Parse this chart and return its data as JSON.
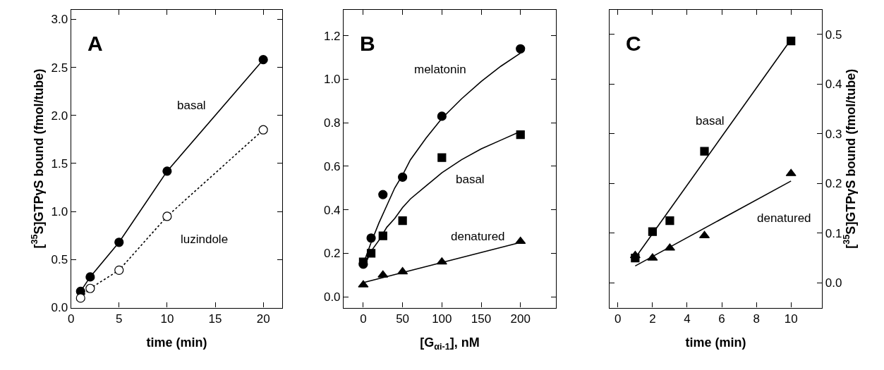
{
  "chart_data": [
    {
      "type": "line",
      "xlabel": "time (min)",
      "ylabel": "[$^{35}$S]GTPγS bound (fmol/tube)",
      "xlim": [
        0,
        22
      ],
      "ylim": [
        0,
        3.1
      ],
      "xticks": [
        0,
        5,
        10,
        15,
        20
      ],
      "yticks": [
        {
          "value": 0,
          "label": "0.0"
        },
        {
          "value": 0.5,
          "label": "0.5"
        },
        {
          "value": 1,
          "label": "1.0"
        },
        {
          "value": 1.5,
          "label": "1.5"
        },
        {
          "value": 2,
          "label": "2.0"
        },
        {
          "value": 2.5,
          "label": "2.5"
        },
        {
          "value": 3,
          "label": "3.0"
        }
      ],
      "grid": false,
      "series": [
        {
          "color": "#000000",
          "marker": "circle",
          "line_style": "solid",
          "x": [
            1,
            2,
            5,
            10,
            20
          ],
          "values": [
            0.17,
            0.32,
            0.68,
            1.42,
            2.58
          ]
        },
        {
          "color": "#000000",
          "marker": "circle-open",
          "line_style": "dotted",
          "x": [
            1,
            2,
            5,
            10,
            20
          ],
          "values": [
            0.1,
            0.2,
            0.39,
            0.95,
            1.85
          ]
        }
      ],
      "annotations": [
        "A",
        "basal",
        "luzindole"
      ]
    },
    {
      "type": "scatter",
      "xlabel": "[G$_{αi-1}$], nM",
      "xlim": [
        -25,
        245
      ],
      "ylim": [
        -0.05,
        1.32
      ],
      "xticks": [
        0,
        50,
        100,
        150,
        200
      ],
      "yticks": [
        {
          "value": 0,
          "label": "0.0"
        },
        {
          "value": 0.2,
          "label": "0.2"
        },
        {
          "value": 0.4,
          "label": "0.4"
        },
        {
          "value": 0.6,
          "label": "0.6"
        },
        {
          "value": 0.8,
          "label": "0.8"
        },
        {
          "value": 1,
          "label": "1.0"
        },
        {
          "value": 1.2,
          "label": "1.2"
        }
      ],
      "grid": false,
      "series": [
        {
          "color": "#000000",
          "marker": "circle",
          "x": [
            0,
            10,
            25,
            50,
            100,
            200
          ],
          "values": [
            0.15,
            0.27,
            0.47,
            0.55,
            0.83,
            1.14
          ]
        },
        {
          "color": "#000000",
          "marker": "square",
          "x": [
            0,
            10,
            25,
            50,
            100,
            200
          ],
          "values": [
            0.16,
            0.2,
            0.28,
            0.35,
            0.64,
            0.745
          ]
        },
        {
          "color": "#000000",
          "marker": "triangle",
          "x": [
            0,
            25,
            50,
            100,
            200
          ],
          "values": [
            0.055,
            0.1,
            0.115,
            0.16,
            0.255
          ]
        },
        {
          "type": "line",
          "color": "#000000",
          "marker": "none",
          "line_style": "solid",
          "x": [
            0,
            5,
            10,
            20,
            30,
            40,
            50,
            60,
            80,
            100,
            125,
            150,
            175,
            200
          ],
          "values": [
            0.15,
            0.2,
            0.25,
            0.34,
            0.42,
            0.5,
            0.56,
            0.63,
            0.73,
            0.82,
            0.91,
            0.99,
            1.06,
            1.12
          ]
        },
        {
          "type": "line",
          "color": "#000000",
          "marker": "none",
          "line_style": "solid",
          "x": [
            0,
            5,
            10,
            20,
            30,
            40,
            50,
            60,
            80,
            100,
            125,
            150,
            175,
            200
          ],
          "values": [
            0.14,
            0.17,
            0.21,
            0.26,
            0.32,
            0.36,
            0.41,
            0.45,
            0.51,
            0.57,
            0.63,
            0.68,
            0.72,
            0.76
          ]
        },
        {
          "type": "line",
          "color": "#000000",
          "marker": "none",
          "line_style": "solid",
          "x": [
            0,
            200
          ],
          "values": [
            0.065,
            0.25
          ]
        }
      ],
      "annotations": [
        "B",
        "melatonin",
        "basal",
        "denatured"
      ]
    },
    {
      "type": "scatter",
      "xlabel": "time (min)",
      "y2label": "[$^{35}$S]GTPγS bound (fmol/tube)",
      "xlim": [
        -0.5,
        11.8
      ],
      "y2lim": [
        -0.05,
        0.55
      ],
      "xticks": [
        0,
        2,
        4,
        6,
        8,
        10
      ],
      "y2ticks": [
        {
          "value": 0,
          "label": "0.0"
        },
        {
          "value": 0.1,
          "label": "0.1"
        },
        {
          "value": 0.2,
          "label": "0.2"
        },
        {
          "value": 0.3,
          "label": "0.3"
        },
        {
          "value": 0.4,
          "label": "0.4"
        },
        {
          "value": 0.5,
          "label": "0.5"
        }
      ],
      "grid": false,
      "series": [
        {
          "axis": "y2",
          "color": "#000000",
          "marker": "square",
          "x": [
            1,
            2,
            3,
            5,
            10
          ],
          "values": [
            0.05,
            0.103,
            0.125,
            0.265,
            0.487
          ]
        },
        {
          "axis": "y2",
          "color": "#000000",
          "marker": "triangle",
          "x": [
            1,
            2,
            3,
            5,
            10
          ],
          "values": [
            0.055,
            0.05,
            0.07,
            0.095,
            0.22
          ]
        },
        {
          "type": "line",
          "axis": "y2",
          "color": "#000000",
          "marker": "none",
          "line_style": "solid",
          "x": [
            1,
            10
          ],
          "values": [
            0.05,
            0.49
          ]
        },
        {
          "type": "line",
          "axis": "y2",
          "color": "#000000",
          "marker": "none",
          "line_style": "solid",
          "x": [
            1,
            10
          ],
          "values": [
            0.034,
            0.205
          ]
        }
      ],
      "annotations": [
        "C",
        "basal",
        "denatured"
      ]
    }
  ]
}
